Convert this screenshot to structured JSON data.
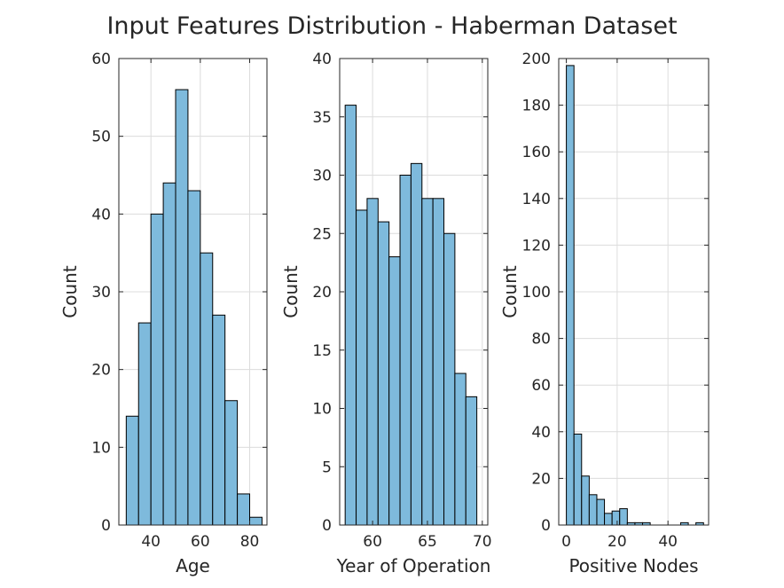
{
  "figure": {
    "title": "Input Features Distribution - Haberman Dataset",
    "colors": {
      "bar_fill": "#7ebadc",
      "bar_edge": "#000000",
      "grid": "#dcdcdc",
      "text": "#262626"
    }
  },
  "chart_data": [
    {
      "type": "bar",
      "xlabel": "Age",
      "ylabel": "Count",
      "grid": true,
      "xlim": [
        27,
        87
      ],
      "ylim": [
        0,
        60
      ],
      "xticks": [
        40,
        60,
        80
      ],
      "yticks": [
        0,
        10,
        20,
        30,
        40,
        50,
        60
      ],
      "bin_edges": [
        30,
        35,
        40,
        45,
        50,
        55,
        60,
        65,
        70,
        75,
        80,
        85
      ],
      "values": [
        14,
        26,
        40,
        44,
        56,
        43,
        35,
        27,
        16,
        4,
        1
      ]
    },
    {
      "type": "bar",
      "xlabel": "Year of Operation",
      "ylabel": "Count",
      "grid": true,
      "xlim": [
        57,
        70.5
      ],
      "ylim": [
        0,
        40
      ],
      "xticks": [
        60,
        65,
        70
      ],
      "yticks": [
        0,
        5,
        10,
        15,
        20,
        25,
        30,
        35,
        40
      ],
      "bin_edges": [
        57.5,
        58.5,
        59.5,
        60.5,
        61.5,
        62.5,
        63.5,
        64.5,
        65.5,
        66.5,
        67.5,
        68.5,
        69.5
      ],
      "values": [
        36,
        27,
        28,
        26,
        23,
        30,
        31,
        28,
        28,
        25,
        13,
        11
      ]
    },
    {
      "type": "bar",
      "xlabel": "Positive Nodes",
      "ylabel": "Count",
      "grid": true,
      "xlim": [
        -3,
        56
      ],
      "ylim": [
        0,
        200
      ],
      "xticks": [
        0,
        20,
        40
      ],
      "yticks": [
        0,
        20,
        40,
        60,
        80,
        100,
        120,
        140,
        160,
        180,
        200
      ],
      "bin_edges": [
        0,
        3,
        6,
        9,
        12,
        15,
        18,
        21,
        24,
        27,
        30,
        33,
        36,
        39,
        42,
        45,
        48,
        51,
        54
      ],
      "values": [
        197,
        39,
        21,
        13,
        11,
        5,
        6,
        7,
        1,
        1,
        1,
        0,
        0,
        0,
        0,
        1,
        0,
        1
      ]
    }
  ]
}
